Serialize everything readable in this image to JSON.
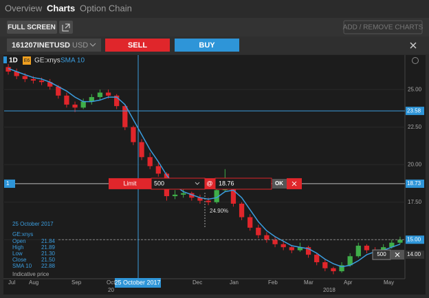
{
  "tabs": [
    "Overview",
    "Charts",
    "Option Chain"
  ],
  "toolbar": {
    "full_screen": "FULL SCREEN",
    "add_remove": "ADD / REMOVE CHARTS"
  },
  "instrument": {
    "symbol": "161207INETUSD",
    "currency": "USD",
    "sell": "SELL",
    "buy": "BUY"
  },
  "chart_data": {
    "type": "candlestick",
    "interval": "1D",
    "symbol_badge": "E6",
    "symbol": "GE:xnys",
    "ohlc": [
      [
        26.5,
        26.7,
        26.0,
        26.2
      ],
      [
        26.2,
        26.4,
        25.7,
        25.9
      ],
      [
        25.9,
        26.1,
        25.5,
        25.7
      ],
      [
        25.7,
        25.9,
        25.4,
        25.6
      ],
      [
        25.6,
        25.8,
        25.3,
        25.5
      ],
      [
        25.5,
        25.7,
        25.0,
        25.2
      ],
      [
        25.2,
        25.3,
        24.4,
        24.6
      ],
      [
        24.6,
        24.8,
        23.8,
        24.0
      ],
      [
        24.0,
        24.2,
        23.5,
        23.8
      ],
      [
        23.8,
        24.4,
        23.7,
        24.2
      ],
      [
        24.2,
        24.7,
        24.0,
        24.5
      ],
      [
        24.5,
        25.0,
        24.3,
        24.8
      ],
      [
        24.8,
        25.0,
        24.4,
        24.6
      ],
      [
        24.6,
        24.7,
        23.7,
        23.9
      ],
      [
        23.9,
        24.0,
        22.3,
        22.5
      ],
      [
        22.5,
        22.6,
        21.3,
        21.5
      ],
      [
        21.5,
        21.7,
        20.3,
        20.5
      ],
      [
        20.5,
        20.8,
        19.7,
        19.9
      ],
      [
        19.9,
        20.2,
        19.2,
        19.4
      ],
      [
        19.4,
        19.5,
        17.6,
        17.9
      ],
      [
        17.9,
        18.3,
        17.7,
        18.0
      ],
      [
        18.0,
        18.4,
        17.8,
        18.1
      ],
      [
        18.1,
        18.2,
        17.6,
        17.8
      ],
      [
        17.8,
        18.0,
        17.4,
        17.6
      ],
      [
        17.6,
        17.8,
        17.3,
        17.5
      ],
      [
        17.5,
        18.5,
        17.4,
        18.3
      ],
      [
        18.3,
        19.7,
        18.2,
        19.0
      ],
      [
        19.0,
        19.1,
        17.2,
        17.4
      ],
      [
        17.4,
        17.5,
        16.3,
        16.5
      ],
      [
        16.5,
        16.7,
        15.6,
        15.8
      ],
      [
        15.8,
        16.0,
        15.1,
        15.3
      ],
      [
        15.3,
        15.5,
        14.8,
        15.0
      ],
      [
        15.0,
        15.2,
        14.5,
        14.7
      ],
      [
        14.7,
        14.9,
        14.3,
        14.5
      ],
      [
        14.5,
        14.6,
        14.1,
        14.3
      ],
      [
        14.3,
        14.8,
        14.2,
        14.5
      ],
      [
        14.5,
        14.6,
        13.8,
        14.0
      ],
      [
        14.0,
        14.1,
        13.3,
        13.5
      ],
      [
        13.5,
        13.7,
        12.9,
        13.1
      ],
      [
        13.1,
        13.2,
        12.7,
        12.9
      ],
      [
        12.9,
        13.5,
        12.8,
        13.3
      ],
      [
        13.3,
        14.1,
        13.2,
        13.9
      ],
      [
        13.9,
        14.8,
        13.8,
        14.6
      ],
      [
        14.6,
        14.7,
        14.1,
        14.3
      ],
      [
        14.3,
        14.5,
        14.0,
        14.2
      ],
      [
        14.2,
        14.7,
        14.1,
        14.5
      ],
      [
        14.5,
        15.0,
        14.4,
        14.8
      ],
      [
        14.8,
        15.2,
        14.7,
        15.0
      ]
    ],
    "up_color": "#3fae49",
    "down_color": "#e0262b",
    "sma": {
      "name": "SMA 10",
      "color": "#3b9ee0",
      "values": [
        26.4,
        26.2,
        26.0,
        25.8,
        25.7,
        25.5,
        25.2,
        24.9,
        24.5,
        24.2,
        24.2,
        24.3,
        24.5,
        24.5,
        24.0,
        23.0,
        22.0,
        21.0,
        20.2,
        19.3,
        18.6,
        18.2,
        18.0,
        17.8,
        17.7,
        17.8,
        18.2,
        18.3,
        17.8,
        17.0,
        16.2,
        15.6,
        15.2,
        14.9,
        14.6,
        14.5,
        14.4,
        14.1,
        13.7,
        13.4,
        13.2,
        13.3,
        13.6,
        14.0,
        14.2,
        14.3,
        14.5,
        14.7
      ]
    },
    "ylim": [
      12.4,
      27.3
    ],
    "yticks": [
      {
        "value": 25,
        "label": "25.00"
      },
      {
        "value": 22.5,
        "label": "22.50"
      },
      {
        "value": 20,
        "label": "20.00"
      },
      {
        "value": 17.5,
        "label": "17.50"
      },
      {
        "value": 15,
        "label": "15.00"
      }
    ],
    "x_labels": [
      "Jul",
      "Aug",
      "Sep",
      "Oct",
      "Dec",
      "Jan",
      "Feb",
      "Mar",
      "Apr",
      "May"
    ],
    "year_labels": [
      "20",
      "2018"
    ],
    "crosshair_label": "25 October 2017",
    "alert_line": 23.58,
    "order_line": 18.73,
    "last_price": {
      "value": 15,
      "label": "15.00"
    },
    "position_price": {
      "value": 14,
      "label": "14.00"
    },
    "order": {
      "count": "1",
      "type": "Limit",
      "quantity": 500,
      "at": "@",
      "price": 18.76,
      "ok": "OK"
    },
    "change": "24.90%",
    "position": {
      "quantity": 500
    },
    "info": {
      "date": "25 October 2017",
      "symbol": "GE:xnys",
      "rows": [
        [
          "Open",
          "21.84"
        ],
        [
          "High",
          "21.89"
        ],
        [
          "Low",
          "21.30"
        ],
        [
          "Close",
          "21.50"
        ],
        [
          "SMA 10",
          "22.88"
        ]
      ],
      "note": "Indicative price"
    }
  }
}
